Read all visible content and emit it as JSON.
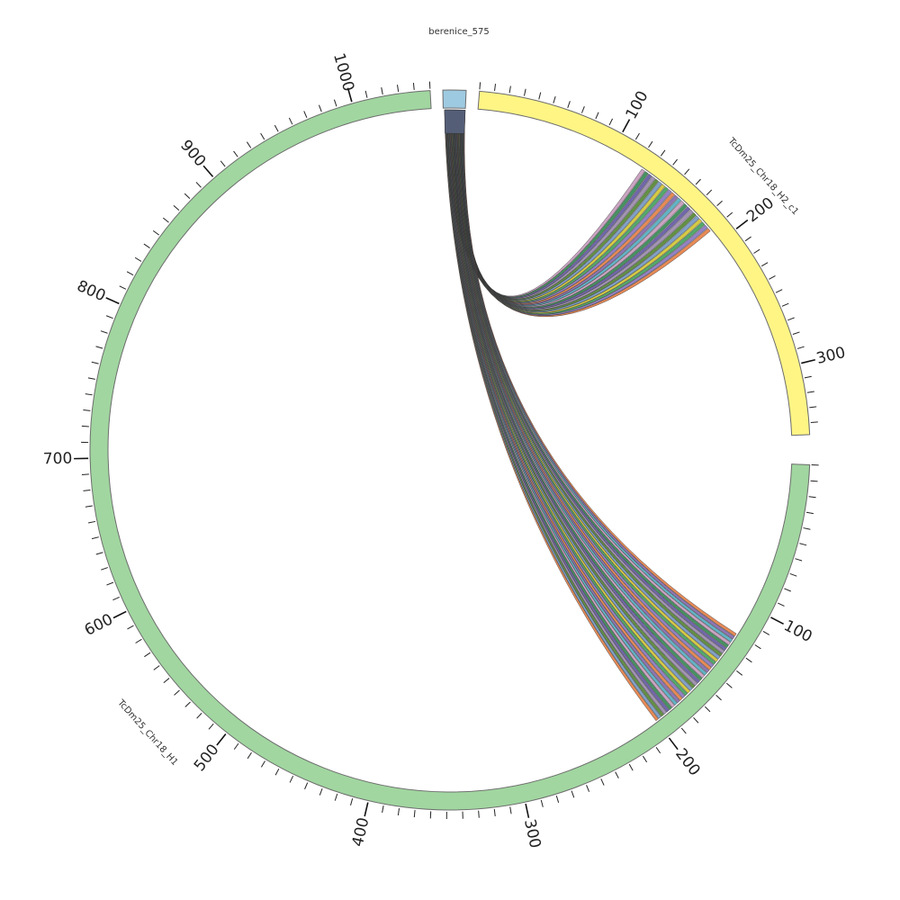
{
  "segments": [
    {
      "name": "berenice_575",
      "label": "berenice_575",
      "length": 8,
      "color": "#9ecae1"
    },
    {
      "name": "TcDm25_Chr18_H2_c1",
      "label": "TcDm25_Chr18_H2_c1",
      "length": 348,
      "color": "#fff585"
    },
    {
      "name": "TcDm25_Chr18_H1",
      "label": "TcDm25_Chr18_H1",
      "length": 1050,
      "color": "#a1d6a0"
    }
  ],
  "tick_labels": {
    "TcDm25_Chr18_H2_c1": [
      "100",
      "200",
      "300"
    ],
    "TcDm25_Chr18_H1": [
      "100",
      "200",
      "300",
      "400",
      "500",
      "600",
      "700",
      "800",
      "900",
      "1000"
    ]
  },
  "ribbon_colors": [
    "#e6844d",
    "#8e7cc3",
    "#4aa564",
    "#d4c83a",
    "#7a9cc6",
    "#5b8c3a",
    "#9f8fb0",
    "#6a5fa8",
    "#3d8e5a",
    "#c9a0c0",
    "#5ab0c4",
    "#8a6fb0"
  ],
  "links": [
    {
      "target": "TcDm25_Chr18_H2_c1",
      "from": 0.5,
      "to": 8,
      "start": 124,
      "end": 190
    },
    {
      "target": "TcDm25_Chr18_H1",
      "from": 0.5,
      "to": 8,
      "start": 120,
      "end": 200
    }
  ]
}
